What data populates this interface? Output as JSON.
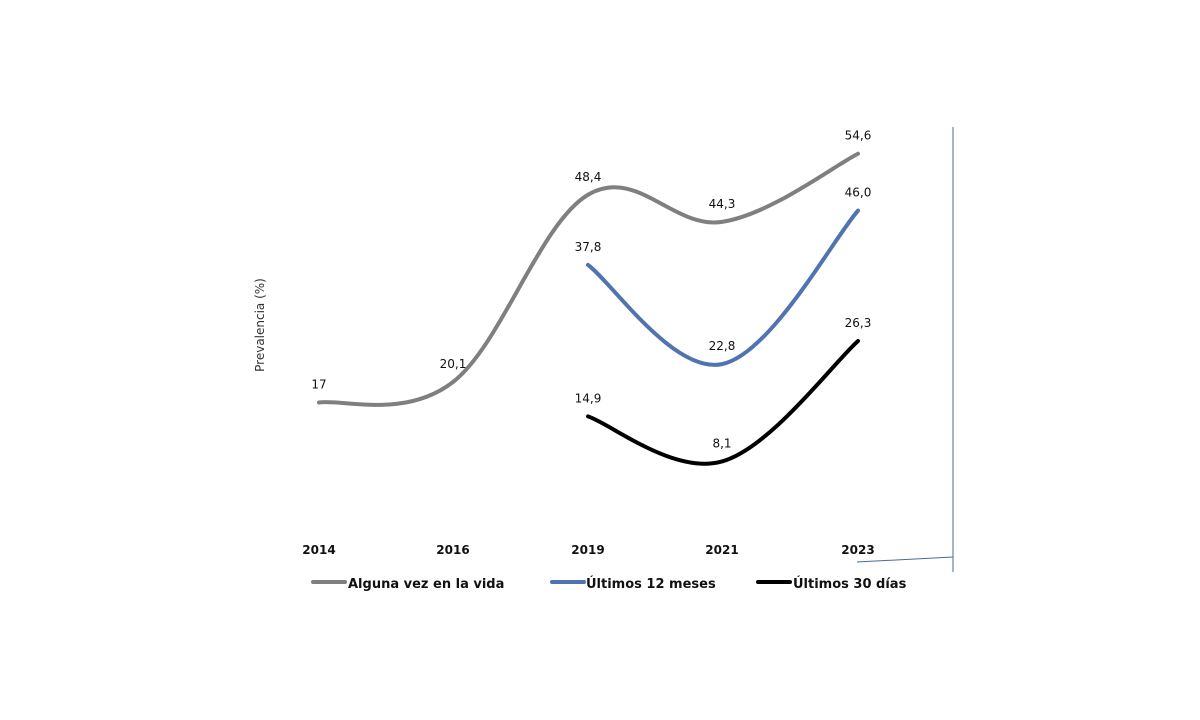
{
  "chart_data": {
    "type": "line",
    "title": "",
    "xlabel": "",
    "ylabel": "Prevalencia (%)",
    "categories": [
      "2014",
      "2016",
      "2019",
      "2021",
      "2023"
    ],
    "ylim": [
      0,
      60
    ],
    "series": [
      {
        "name": "Alguna vez en la vida",
        "color": "#7f7f7f",
        "values": [
          17,
          20.1,
          48.4,
          44.3,
          54.6
        ],
        "labels": [
          "17",
          "20,1",
          "48,4",
          "44,3",
          "54,6"
        ]
      },
      {
        "name": "Últimos 12 meses",
        "color": "#4f74b0",
        "values": [
          null,
          null,
          37.8,
          22.8,
          46.0
        ],
        "labels": [
          "",
          "",
          "37,8",
          "22,8",
          "46,0"
        ]
      },
      {
        "name": "Últimos 30 días",
        "color": "#000000",
        "values": [
          null,
          null,
          14.9,
          8.1,
          26.3
        ],
        "labels": [
          "",
          "",
          "14,9",
          "8,1",
          "26,3"
        ]
      }
    ]
  }
}
